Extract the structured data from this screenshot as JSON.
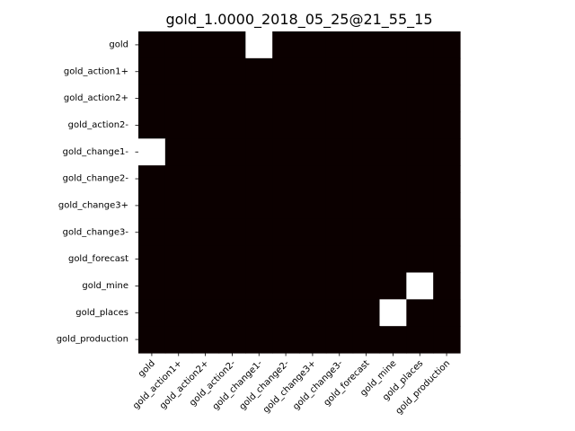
{
  "chart_data": {
    "type": "heatmap",
    "title": "gold_1.0000_2018_05_25@21_55_15",
    "xlabel": "",
    "ylabel": "",
    "row_labels": [
      "gold",
      "gold_action1+",
      "gold_action2+",
      "gold_action2-",
      "gold_change1-",
      "gold_change2-",
      "gold_change3+",
      "gold_change3-",
      "gold_forecast",
      "gold_mine",
      "gold_places",
      "gold_production"
    ],
    "col_labels": [
      "gold",
      "gold_action1+",
      "gold_action2+",
      "gold_action2-",
      "gold_change1-",
      "gold_change2-",
      "gold_change3+",
      "gold_change3-",
      "gold_forecast",
      "gold_mine",
      "gold_places",
      "gold_production"
    ],
    "values": [
      [
        0,
        0,
        0,
        0,
        1,
        0,
        0,
        0,
        0,
        0,
        0,
        0
      ],
      [
        0,
        0,
        0,
        0,
        0,
        0,
        0,
        0,
        0,
        0,
        0,
        0
      ],
      [
        0,
        0,
        0,
        0,
        0,
        0,
        0,
        0,
        0,
        0,
        0,
        0
      ],
      [
        0,
        0,
        0,
        0,
        0,
        0,
        0,
        0,
        0,
        0,
        0,
        0
      ],
      [
        1,
        0,
        0,
        0,
        0,
        0,
        0,
        0,
        0,
        0,
        0,
        0
      ],
      [
        0,
        0,
        0,
        0,
        0,
        0,
        0,
        0,
        0,
        0,
        0,
        0
      ],
      [
        0,
        0,
        0,
        0,
        0,
        0,
        0,
        0,
        0,
        0,
        0,
        0
      ],
      [
        0,
        0,
        0,
        0,
        0,
        0,
        0,
        0,
        0,
        0,
        0,
        0
      ],
      [
        0,
        0,
        0,
        0,
        0,
        0,
        0,
        0,
        0,
        0,
        0,
        0
      ],
      [
        0,
        0,
        0,
        0,
        0,
        0,
        0,
        0,
        0,
        0,
        1,
        0
      ],
      [
        0,
        0,
        0,
        0,
        0,
        0,
        0,
        0,
        0,
        1,
        0,
        0
      ],
      [
        0,
        0,
        0,
        0,
        0,
        0,
        0,
        0,
        0,
        0,
        0,
        0
      ]
    ],
    "colormap": {
      "low": "#0b0000",
      "high": "#ffffff"
    },
    "grid": false,
    "legend": "none"
  }
}
